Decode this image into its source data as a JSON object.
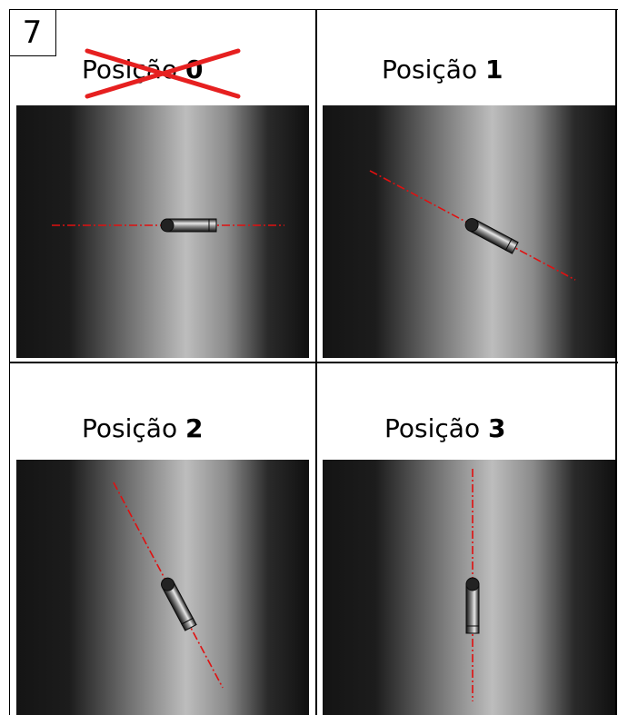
{
  "badge": "7",
  "panels": [
    {
      "word": "Posição",
      "number": "0",
      "crossed_out": true,
      "angle_deg": 0
    },
    {
      "word": "Posição",
      "number": "1",
      "crossed_out": false,
      "angle_deg": 28
    },
    {
      "word": "Posição",
      "number": "2",
      "crossed_out": false,
      "angle_deg": 62
    },
    {
      "word": "Posição",
      "number": "3",
      "crossed_out": false,
      "angle_deg": 90
    }
  ],
  "colors": {
    "axis_line": "#e01010",
    "cross": "#e62020"
  }
}
